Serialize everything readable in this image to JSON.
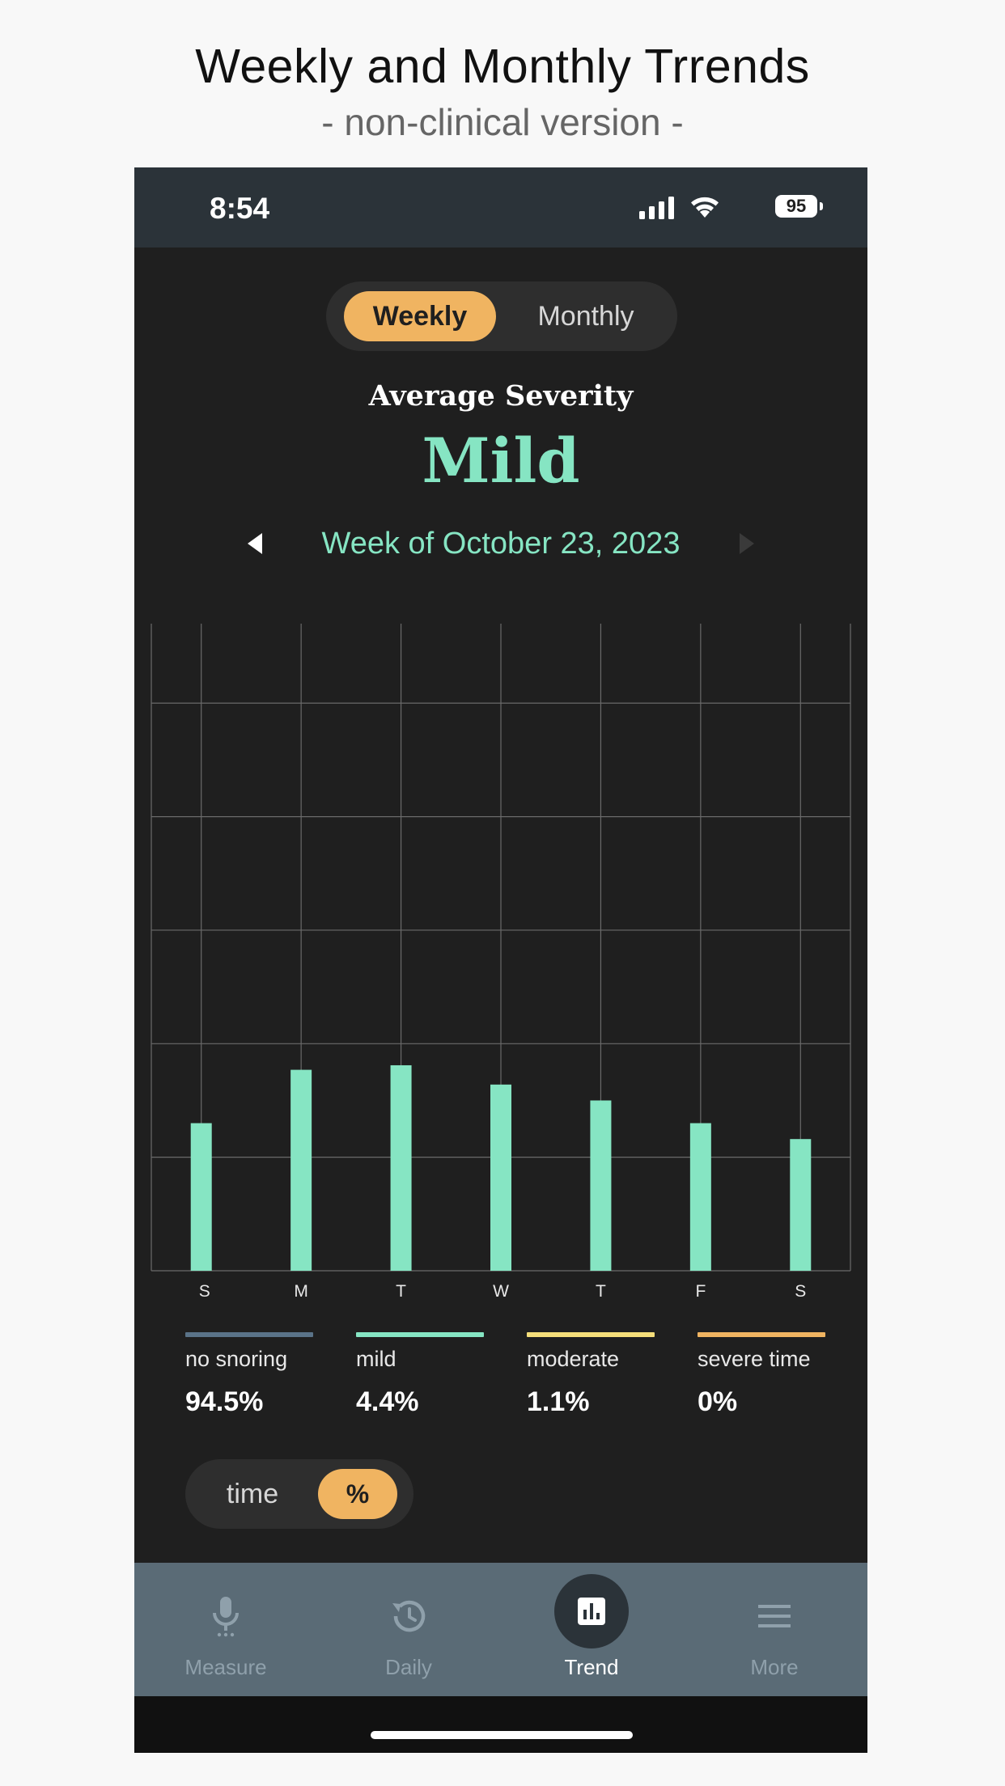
{
  "page": {
    "title": "Weekly and Monthly Trrends",
    "subtitle": "- non-clinical version -"
  },
  "status_bar": {
    "time": "8:54",
    "battery": "95",
    "icons": [
      "signal-icon",
      "wifi-icon",
      "battery-icon"
    ]
  },
  "period_toggle": {
    "options": [
      "Weekly",
      "Monthly"
    ],
    "selected": "Weekly"
  },
  "summary": {
    "label": "Average Severity",
    "value": "Mild"
  },
  "week_nav": {
    "label": "Week of October 23, 2023",
    "prev_icon": "triangle-left-icon",
    "next_icon": "triangle-right-icon"
  },
  "chart_data": {
    "type": "bar",
    "categories": [
      "S",
      "M",
      "T",
      "W",
      "T",
      "F",
      "S"
    ],
    "values": [
      1.3,
      1.77,
      1.81,
      1.64,
      1.5,
      1.3,
      1.16
    ],
    "ylim": [
      0,
      5.7
    ],
    "ygrid": [
      0,
      1,
      2,
      3,
      4,
      5
    ],
    "grid": true,
    "bar_color": "#86e5c3"
  },
  "legend": [
    {
      "label": "no snoring",
      "value": "94.5%",
      "color": "#5a7388"
    },
    {
      "label": "mild",
      "value": "4.4%",
      "color": "#86e5c3"
    },
    {
      "label": "moderate",
      "value": "1.1%",
      "color": "#f5de7a"
    },
    {
      "label": "severe time",
      "value": "0%",
      "color": "#f0b461"
    }
  ],
  "unit_toggle": {
    "options": [
      "time",
      "%"
    ],
    "selected": "%"
  },
  "tabs": [
    {
      "label": "Measure",
      "icon": "microphone-icon",
      "active": false
    },
    {
      "label": "Daily",
      "icon": "history-icon",
      "active": false
    },
    {
      "label": "Trend",
      "icon": "bar-chart-icon",
      "active": true
    },
    {
      "label": "More",
      "icon": "menu-icon",
      "active": false
    }
  ],
  "colors": {
    "accent": "#f0b461",
    "mint": "#86e5c3",
    "background": "#1f1f1f",
    "tab_bar": "#5a6b76"
  }
}
